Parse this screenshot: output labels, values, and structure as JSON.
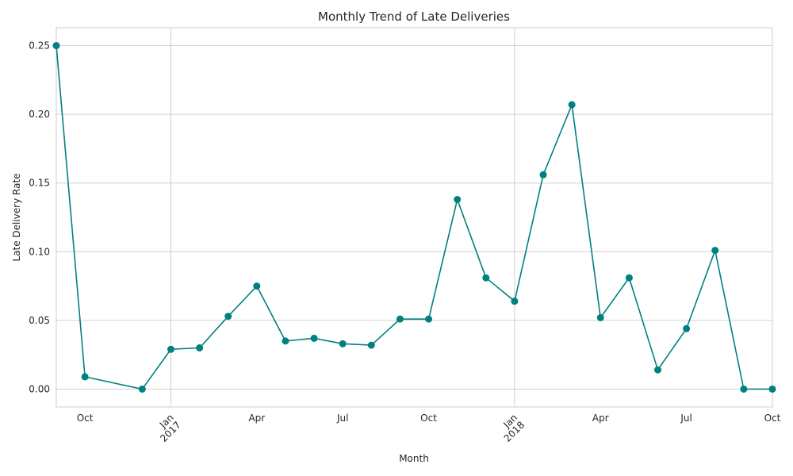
{
  "chart_data": {
    "type": "line",
    "title": "Monthly Trend of Late Deliveries",
    "xlabel": "Month",
    "ylabel": "Late Delivery Rate",
    "color": "#008080",
    "grid": true,
    "ylim": [
      -0.013,
      0.263
    ],
    "xlim": [
      "2016-09",
      "2018-10"
    ],
    "y_ticks": [
      "0.00",
      "0.05",
      "0.10",
      "0.15",
      "0.20",
      "0.25"
    ],
    "x_ticks": [
      {
        "month": "2016-10",
        "label": "Oct",
        "year": ""
      },
      {
        "month": "2017-01",
        "label": "Jan",
        "year": "2017"
      },
      {
        "month": "2017-04",
        "label": "Apr",
        "year": ""
      },
      {
        "month": "2017-07",
        "label": "Jul",
        "year": ""
      },
      {
        "month": "2017-10",
        "label": "Oct",
        "year": ""
      },
      {
        "month": "2018-01",
        "label": "Jan",
        "year": "2018"
      },
      {
        "month": "2018-04",
        "label": "Apr",
        "year": ""
      },
      {
        "month": "2018-07",
        "label": "Jul",
        "year": ""
      },
      {
        "month": "2018-10",
        "label": "Oct",
        "year": ""
      }
    ],
    "series": [
      {
        "x": [
          "2016-09",
          "2016-10",
          "2016-12",
          "2017-01",
          "2017-02",
          "2017-03",
          "2017-04",
          "2017-05",
          "2017-06",
          "2017-07",
          "2017-08",
          "2017-09",
          "2017-10",
          "2017-11",
          "2017-12",
          "2018-01",
          "2018-02",
          "2018-03",
          "2018-04",
          "2018-05",
          "2018-06",
          "2018-07",
          "2018-08",
          "2018-09",
          "2018-10"
        ],
        "values": [
          0.25,
          0.009,
          0.0,
          0.029,
          0.03,
          0.053,
          0.075,
          0.035,
          0.037,
          0.033,
          0.032,
          0.051,
          0.051,
          0.138,
          0.081,
          0.064,
          0.156,
          0.207,
          0.052,
          0.081,
          0.014,
          0.044,
          0.101,
          0.0,
          0.0
        ]
      }
    ]
  }
}
